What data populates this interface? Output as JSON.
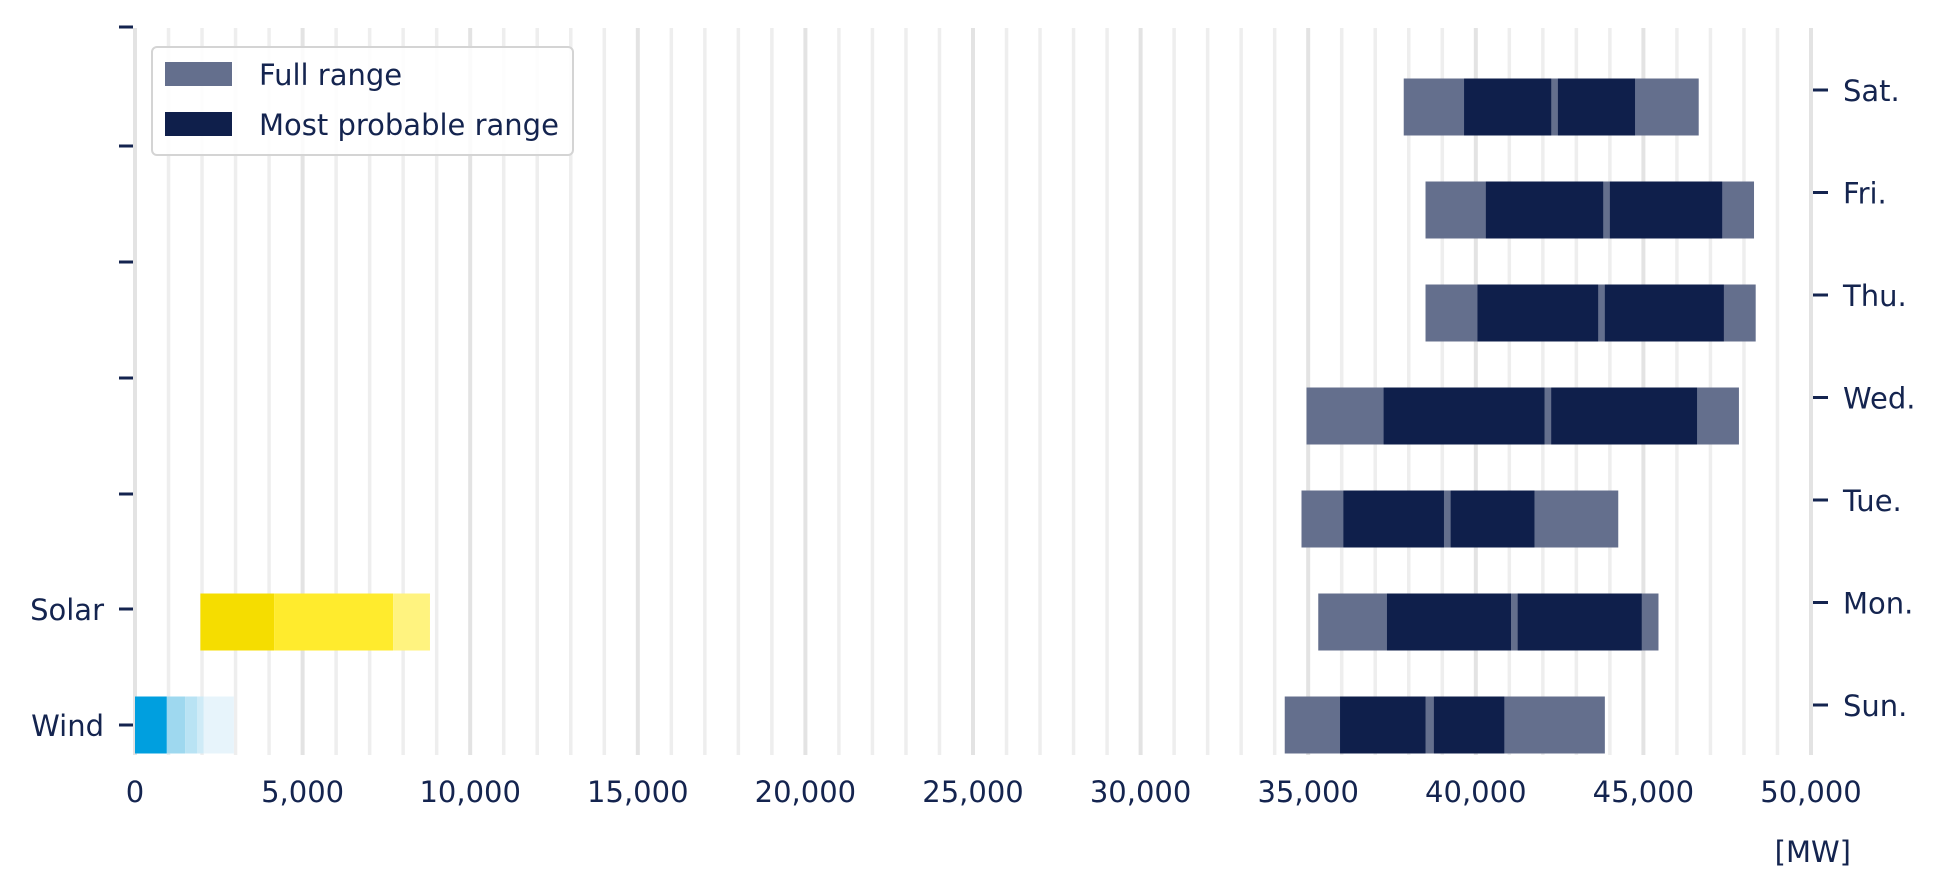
{
  "chart_data": {
    "type": "bar",
    "orientation": "horizontal-range",
    "unit_label": "[MW]",
    "xlim": [
      0,
      50000
    ],
    "x_ticks": [
      0,
      5000,
      10000,
      15000,
      20000,
      25000,
      30000,
      35000,
      40000,
      45000,
      50000
    ],
    "x_tick_labels": [
      "0",
      "5,000",
      "10,000",
      "15,000",
      "20,000",
      "25,000",
      "30,000",
      "35,000",
      "40,000",
      "45,000",
      "50,000"
    ],
    "minor_grid_step": 1000,
    "grid": true,
    "left_axis_labels": [
      "Wind",
      "Solar",
      "",
      "",
      "",
      "",
      ""
    ],
    "right_axis_labels": [
      "Sun.",
      "Mon.",
      "Tue.",
      "Wed.",
      "Thu.",
      "Fri.",
      "Sat."
    ],
    "legend": {
      "placement": "top-left",
      "entries": [
        {
          "label": "Full range",
          "color": "#646f8d"
        },
        {
          "label": "Most probable range",
          "color": "#0f1f4b"
        }
      ]
    },
    "colors": {
      "full_range": "#646f8d",
      "most_probable": "#0f1f4b",
      "text": "#14244f",
      "wind": [
        "#009fdf",
        "#9ed8ef",
        "#b9e3f4",
        "#cfebf7",
        "#e7f4fb"
      ],
      "solar": [
        "#f5dd00",
        "#ffeb2d",
        "#fff37f"
      ]
    },
    "demand": [
      {
        "day": "Sun.",
        "full": [
          34300,
          43850
        ],
        "probable": [
          [
            35950,
            38500
          ],
          [
            38750,
            40850
          ]
        ]
      },
      {
        "day": "Mon.",
        "full": [
          35300,
          45450
        ],
        "probable": [
          [
            37350,
            41050
          ],
          [
            41250,
            44950
          ]
        ]
      },
      {
        "day": "Tue.",
        "full": [
          34800,
          44250
        ],
        "probable": [
          [
            36050,
            39050
          ],
          [
            39250,
            41750
          ]
        ]
      },
      {
        "day": "Wed.",
        "full": [
          34950,
          47850
        ],
        "probable": [
          [
            37250,
            42050
          ],
          [
            42250,
            46600
          ]
        ]
      },
      {
        "day": "Thu.",
        "full": [
          38500,
          48350
        ],
        "probable": [
          [
            40050,
            43650
          ],
          [
            43850,
            47400
          ]
        ]
      },
      {
        "day": "Fri.",
        "full": [
          38500,
          48300
        ],
        "probable": [
          [
            40300,
            43800
          ],
          [
            44000,
            47350
          ]
        ]
      },
      {
        "day": "Sat.",
        "full": [
          37850,
          46650
        ],
        "probable": [
          [
            39650,
            42250
          ],
          [
            42450,
            44750
          ]
        ]
      }
    ],
    "renewables": [
      {
        "name": "Wind",
        "segments": [
          [
            0,
            950
          ],
          [
            950,
            1500
          ],
          [
            1500,
            1850
          ],
          [
            1850,
            2050
          ],
          [
            2050,
            2950
          ]
        ]
      },
      {
        "name": "Solar",
        "segments": [
          [
            1950,
            4150
          ],
          [
            4150,
            7700
          ],
          [
            7700,
            8800
          ]
        ]
      }
    ]
  }
}
